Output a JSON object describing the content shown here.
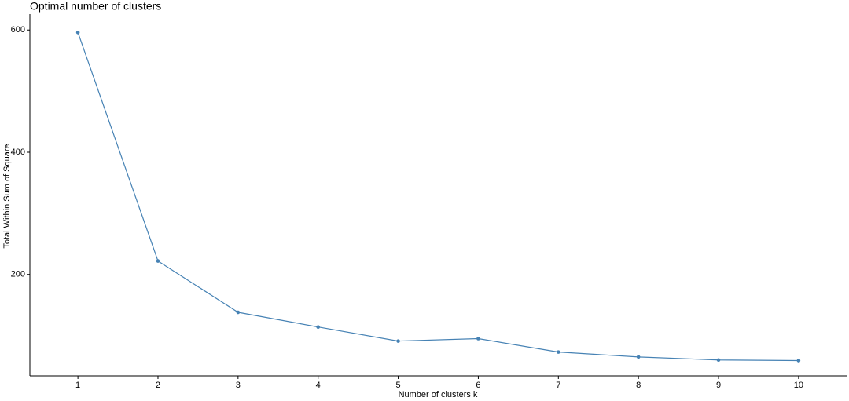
{
  "chart_data": {
    "type": "line",
    "title": "Optimal number of clusters",
    "x_label": "Number of clusters k",
    "y_label": "Total Within Sum of Square",
    "x": [
      1,
      2,
      3,
      4,
      5,
      6,
      7,
      8,
      9,
      10
    ],
    "series": [
      {
        "color": "#4682b4",
        "values": [
          596,
          222,
          138,
          114,
          91,
          95,
          73,
          65,
          60,
          59
        ]
      }
    ],
    "xlim": [
      0.4,
      10.6
    ],
    "xticks": [
      1,
      2,
      3,
      4,
      5,
      6,
      7,
      8,
      9,
      10
    ],
    "ylim": [
      34,
      626
    ],
    "yticks": [
      200,
      400,
      600
    ],
    "grid": false
  }
}
